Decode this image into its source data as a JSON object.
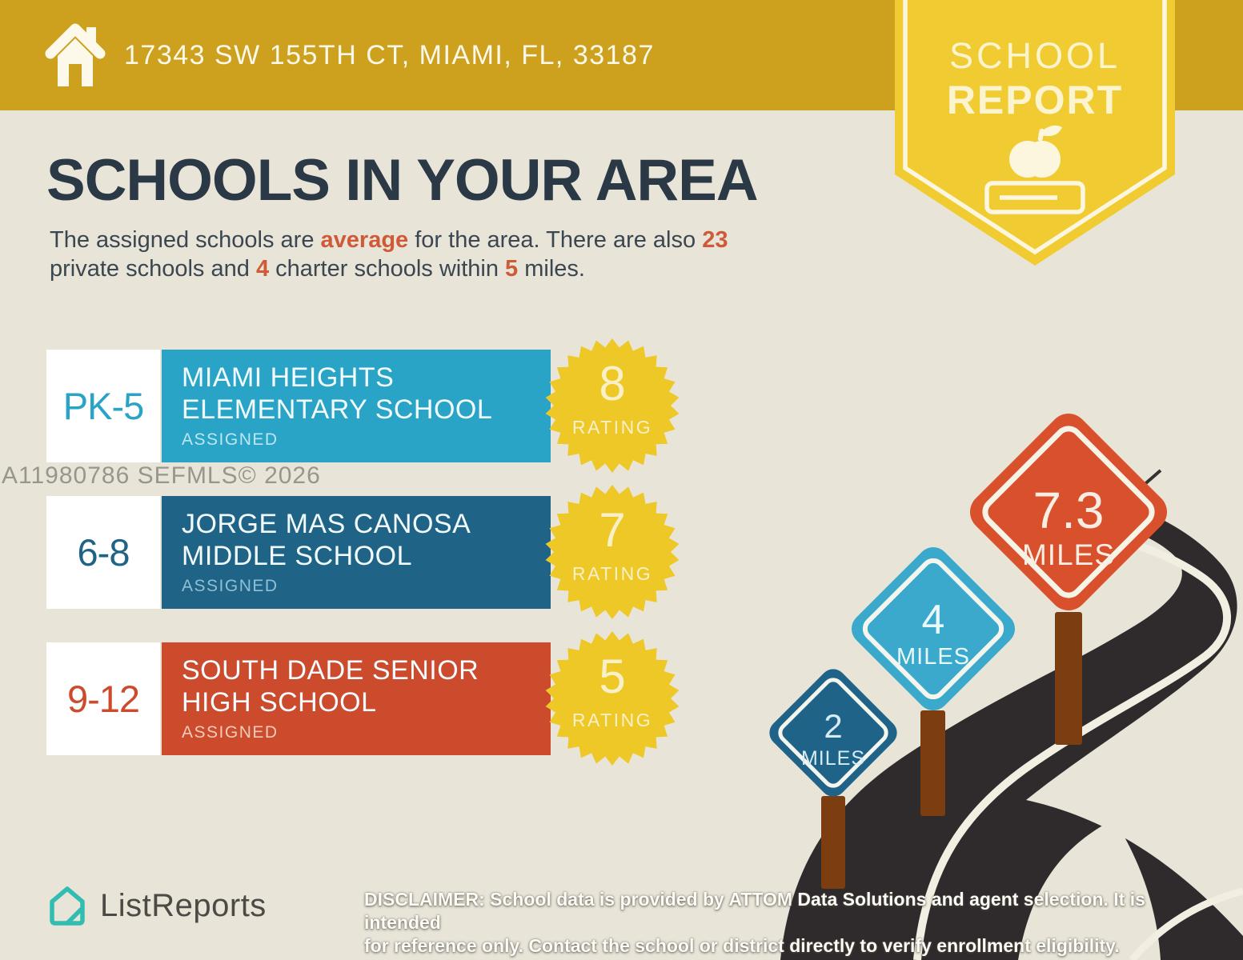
{
  "header": {
    "address": "17343 SW 155TH CT, MIAMI, FL, 33187"
  },
  "badge": {
    "line1": "SCHOOL",
    "line2": "REPORT"
  },
  "title": "SCHOOLS IN YOUR AREA",
  "intro": {
    "p1": "The assigned schools are ",
    "hl1": "average",
    "p2": " for the area. There are also ",
    "hl2": "23",
    "p3": "private schools and ",
    "hl3": "4",
    "p4": " charter schools within ",
    "hl4": "5",
    "p5": " miles."
  },
  "watermark": "A11980786  SEFMLS© 2026",
  "schools": [
    {
      "grades": "PK-5",
      "name_line1": "MIAMI HEIGHTS",
      "name_line2": "ELEMENTARY SCHOOL",
      "status": "ASSIGNED",
      "rating": "8",
      "rating_label": "RATING",
      "bar_color": "#2AA4C6"
    },
    {
      "grades": "6-8",
      "name_line1": "JORGE MAS CANOSA",
      "name_line2": "MIDDLE SCHOOL",
      "status": "ASSIGNED",
      "rating": "7",
      "rating_label": "RATING",
      "bar_color": "#1F6386"
    },
    {
      "grades": "9-12",
      "name_line1": "SOUTH DADE SENIOR",
      "name_line2": "HIGH SCHOOL",
      "status": "ASSIGNED",
      "rating": "5",
      "rating_label": "RATING",
      "bar_color": "#CC4B2C"
    }
  ],
  "signs": [
    {
      "value": "2",
      "unit": "MILES",
      "color": "#1F6488"
    },
    {
      "value": "4",
      "unit": "MILES",
      "color": "#3AA9CB"
    },
    {
      "value": "7.3",
      "unit": "MILES",
      "color": "#D8502C"
    }
  ],
  "footer": {
    "brand": "ListReports",
    "disclaimer_label": "DISCLAIMER:",
    "disclaimer_line1": " School data is provided by ATTOM Data Solutions and agent selection. It is intended",
    "disclaimer_line2": "for reference only. Contact the school or district directly to verify enrollment eligibility."
  },
  "theme": {
    "header_gold": "#CDA01E",
    "badge_yellow": "#F0CC32",
    "background": "#E9E4D8",
    "title_navy": "#2B3946",
    "accent_orange": "#CE5A38",
    "star_yellow": "#EDC827",
    "road_dark": "#2F2B2C",
    "post_brown": "#7C3D11",
    "logo_teal": "#31BDB1"
  }
}
